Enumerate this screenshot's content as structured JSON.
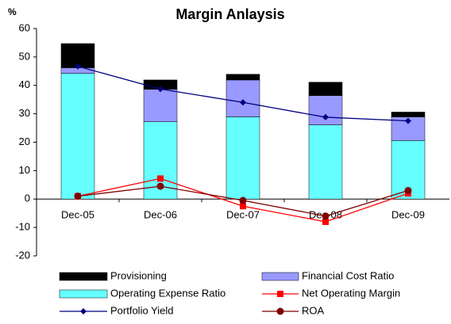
{
  "chart_data": {
    "type": "combo",
    "title": "Margin Anlaysis",
    "y_label": "%",
    "categories": [
      "Dec-05",
      "Dec-06",
      "Dec-07",
      "Dec-08",
      "Dec-09"
    ],
    "ylim": [
      -20,
      60
    ],
    "yticks": [
      -20,
      -10,
      0,
      10,
      20,
      30,
      40,
      50,
      60
    ],
    "series": [
      {
        "name": "Provisioning",
        "type": "bar",
        "color": "#000000",
        "values": [
          8.5,
          3.3,
          2,
          4.7,
          1.7
        ]
      },
      {
        "name": "Financial Cost Ratio",
        "type": "bar",
        "color": "#9999ff",
        "values": [
          2,
          11.4,
          13,
          10.3,
          8.3
        ]
      },
      {
        "name": "Operating Expense Ratio",
        "type": "bar",
        "color": "#66ffff",
        "values": [
          44.2,
          27.2,
          28.9,
          26.1,
          20.6
        ]
      },
      {
        "name": "Net Operating Margin",
        "type": "line",
        "marker": "square",
        "color": "#ff0000",
        "values": [
          1,
          7.2,
          -2.5,
          -8,
          2
        ]
      },
      {
        "name": "Portfolio Yield",
        "type": "line",
        "marker": "diamond",
        "color": "#000080",
        "values": [
          46.7,
          38.7,
          34,
          28.8,
          27.5
        ]
      },
      {
        "name": "ROA",
        "type": "line",
        "marker": "circle",
        "color": "#800000",
        "values": [
          1,
          4.5,
          -0.5,
          -6,
          3
        ]
      }
    ]
  }
}
